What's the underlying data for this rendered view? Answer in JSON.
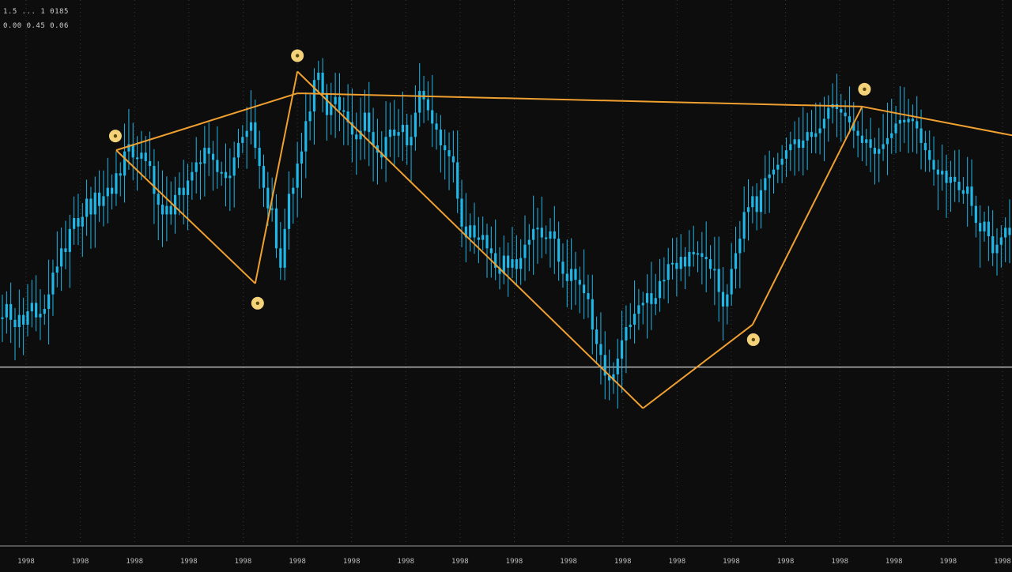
{
  "header": {
    "line1": "1.5 ... 1 0185",
    "line2": "0.00 0.45 0.06"
  },
  "colors": {
    "background": "#0d0d0d",
    "candle": "#1fb6e8",
    "pattern_line": "#f0a030",
    "marker_fill": "#f3d27a",
    "marker_dot": "#5a4a10",
    "baseline": "#d8d8d8",
    "grid": "#3a3a3a"
  },
  "chart_data": {
    "type": "candlestick",
    "title": "",
    "xlabel": "",
    "ylabel": "",
    "grid": "vertical-dotted",
    "x_tick_labels": [
      "1998",
      "1998",
      "1998",
      "1998",
      "1998",
      "1998",
      "1998",
      "1998",
      "1998",
      "1998",
      "1998",
      "1998",
      "1998",
      "1998",
      "1998",
      "1998",
      "1998",
      "1998",
      "1998"
    ],
    "series": [
      {
        "type": "candlestick",
        "close": [
          23.8,
          24.9,
          23.6,
          23.0,
          24.0,
          23.2,
          24.3,
          25.0,
          23.8,
          24.1,
          24.5,
          25.7,
          27.5,
          28.0,
          29.5,
          29.2,
          31.1,
          32.0,
          31.3,
          32.1,
          33.6,
          32.3,
          34.1,
          33.0,
          33.8,
          34.5,
          34.0,
          35.7,
          35.5,
          37.5,
          38.1,
          37.0,
          36.9,
          37.4,
          36.7,
          36.3,
          34.0,
          33.1,
          32.3,
          33.0,
          32.3,
          33.9,
          34.5,
          33.9,
          35.1,
          35.8,
          36.6,
          36.5,
          37.8,
          37.3,
          36.8,
          35.8,
          35.8,
          35.3,
          35.5,
          37.0,
          38.2,
          38.7,
          39.2,
          39.9,
          37.8,
          36.3,
          34.5,
          32.8,
          32.8,
          29.5,
          27.9,
          31.1,
          34.0,
          34.5,
          36.5,
          37.5,
          40.0,
          40.8,
          43.4,
          44.0,
          42.2,
          40.5,
          41.4,
          42.0,
          40.9,
          40.8,
          39.9,
          38.9,
          38.5,
          39.2,
          40.7,
          39.1,
          38.0,
          37.4,
          37.0,
          38.7,
          39.3,
          38.8,
          39.1,
          39.7,
          38.0,
          38.7,
          40.7,
          42.5,
          41.8,
          40.9,
          39.8,
          39.3,
          38.0,
          37.6,
          37.1,
          36.6,
          33.6,
          31.3,
          30.4,
          31.4,
          30.4,
          30.2,
          30.6,
          29.5,
          29.1,
          27.9,
          27.4,
          28.9,
          27.9,
          28.6,
          27.8,
          28.7,
          29.8,
          30.2,
          31.1,
          31.2,
          30.4,
          30.3,
          30.9,
          30.3,
          28.4,
          27.4,
          26.8,
          27.8,
          26.9,
          26.5,
          25.8,
          25.3,
          22.8,
          21.6,
          20.7,
          19.0,
          18.6,
          19.1,
          20.4,
          21.9,
          23.0,
          23.2,
          24.1,
          24.8,
          25.0,
          25.8,
          24.9,
          25.4,
          26.8,
          26.9,
          28.2,
          28.3,
          27.8,
          28.8,
          28.0,
          29.2,
          29.0,
          29.1,
          28.8,
          28.6,
          27.8,
          27.8,
          25.9,
          24.7,
          25.7,
          27.8,
          29.1,
          30.3,
          32.5,
          32.9,
          33.8,
          32.5,
          34.3,
          35.3,
          35.6,
          36.0,
          36.4,
          36.9,
          37.6,
          38.1,
          38.5,
          37.8,
          38.4,
          39.1,
          38.7,
          39.0,
          39.4,
          40.2,
          41.1,
          41.4,
          41.0,
          40.7,
          40.4,
          39.9,
          39.2,
          38.8,
          38.2,
          38.5,
          37.8,
          37.3,
          37.7,
          38.1,
          38.6,
          39.0,
          39.8,
          40.1,
          39.9,
          40.2,
          40.0,
          39.4,
          38.2,
          37.6,
          36.8,
          36.0,
          35.6,
          35.9,
          34.9,
          35.4,
          35.0,
          34.3,
          34.0,
          34.6,
          33.0,
          31.6,
          30.9,
          31.7,
          30.5,
          29.1,
          29.8,
          30.4,
          31.2,
          30.6
        ]
      }
    ],
    "pattern": {
      "type": "zigzag",
      "points": [
        {
          "index": 27,
          "price": 37.6,
          "marker": true
        },
        {
          "index": 60,
          "price": 26.6,
          "marker": true
        },
        {
          "index": 70,
          "price": 44.1,
          "marker": true
        },
        {
          "index": 152,
          "price": 16.3,
          "marker": false
        },
        {
          "index": 178,
          "price": 23.2,
          "marker": true
        },
        {
          "index": 204,
          "price": 41.2,
          "marker": true
        }
      ],
      "trendline": [
        {
          "index": 27,
          "price": 37.6
        },
        {
          "index": 70,
          "price": 42.3
        },
        {
          "index": 204,
          "price": 41.2
        },
        {
          "index": 240,
          "price": 38.8
        }
      ]
    },
    "baseline_price": 19.7,
    "ylim": [
      5,
      50
    ]
  }
}
